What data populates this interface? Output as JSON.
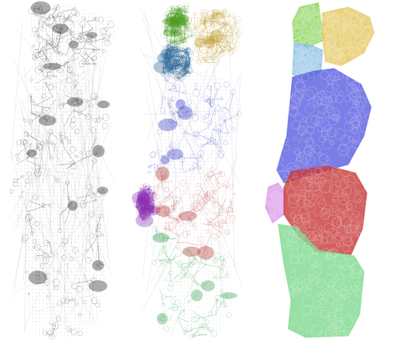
{
  "panels": [
    {
      "key": "raw",
      "style": "network",
      "regions": [
        {
          "name": "north",
          "color": "#111111"
        },
        {
          "name": "center",
          "color": "#111111"
        },
        {
          "name": "south",
          "color": "#111111"
        }
      ]
    },
    {
      "key": "clustered",
      "style": "network",
      "regions": [
        {
          "name": "northwest",
          "color": "#4a9a1e"
        },
        {
          "name": "northeast",
          "color": "#b8921a"
        },
        {
          "name": "north-blue",
          "color": "#1f5e8f"
        },
        {
          "name": "center",
          "color": "#2b2fbf"
        },
        {
          "name": "west",
          "color": "#8a2fb0"
        },
        {
          "name": "center-south",
          "color": "#b02828"
        },
        {
          "name": "south",
          "color": "#2e9a4e"
        }
      ]
    },
    {
      "key": "partition",
      "style": "filled",
      "regions": [
        {
          "name": "northwest",
          "color": "#7fd04a"
        },
        {
          "name": "northeast",
          "color": "#e3c55a"
        },
        {
          "name": "north-blue",
          "color": "#7ab8e0"
        },
        {
          "name": "center",
          "color": "#5a5ee0"
        },
        {
          "name": "west",
          "color": "#d27ae6"
        },
        {
          "name": "center-south",
          "color": "#c83a3a"
        },
        {
          "name": "south",
          "color": "#7ed88f"
        }
      ]
    }
  ]
}
